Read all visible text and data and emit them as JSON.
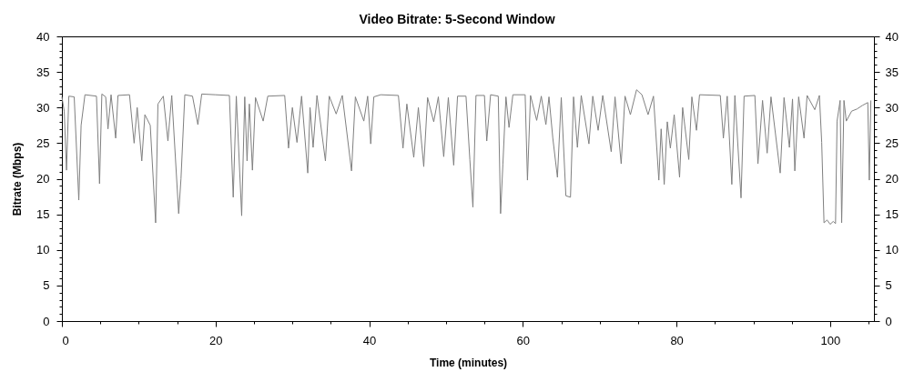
{
  "chart_data": {
    "type": "line",
    "title": "Video Bitrate: 5-Second Window",
    "xlabel": "Time (minutes)",
    "ylabel": "Bitrate (Mbps)",
    "line_style": "solid",
    "xlim": [
      0,
      105.7
    ],
    "xticks": [
      0,
      {
        "value": 5,
        "label": null
      },
      {
        "value": 10,
        "label": null
      },
      {
        "value": 15,
        "label": null
      },
      20,
      {
        "value": 25,
        "label": null
      },
      {
        "value": 30,
        "label": null
      },
      {
        "value": 35,
        "label": null
      },
      40,
      {
        "value": 45,
        "label": null
      },
      {
        "value": 50,
        "label": null
      },
      {
        "value": 55,
        "label": null
      },
      60,
      {
        "value": 65,
        "label": null
      },
      {
        "value": 70,
        "label": null
      },
      {
        "value": 75,
        "label": null
      },
      80,
      {
        "value": 85,
        "label": null
      },
      {
        "value": 90,
        "label": null
      },
      {
        "value": 95,
        "label": null
      },
      100,
      {
        "value": 105,
        "label": null
      }
    ],
    "ylim": [
      0,
      40
    ],
    "yticks": [
      0,
      {
        "value": 1,
        "label": null
      },
      {
        "value": 2,
        "label": null
      },
      {
        "value": 3,
        "label": null
      },
      {
        "value": 4,
        "label": null
      },
      5,
      {
        "value": 6,
        "label": null
      },
      {
        "value": 7,
        "label": null
      },
      {
        "value": 8,
        "label": null
      },
      {
        "value": 9,
        "label": null
      },
      10,
      {
        "value": 11,
        "label": null
      },
      {
        "value": 12,
        "label": null
      },
      {
        "value": 13,
        "label": null
      },
      {
        "value": 14,
        "label": null
      },
      15,
      {
        "value": 16,
        "label": null
      },
      {
        "value": 17,
        "label": null
      },
      {
        "value": 18,
        "label": null
      },
      {
        "value": 19,
        "label": null
      },
      20,
      {
        "value": 21,
        "label": null
      },
      {
        "value": 22,
        "label": null
      },
      {
        "value": 23,
        "label": null
      },
      {
        "value": 24,
        "label": null
      },
      25,
      {
        "value": 26,
        "label": null
      },
      {
        "value": 27,
        "label": null
      },
      {
        "value": 28,
        "label": null
      },
      {
        "value": 29,
        "label": null
      },
      30,
      {
        "value": 31,
        "label": null
      },
      {
        "value": 32,
        "label": null
      },
      {
        "value": 33,
        "label": null
      },
      {
        "value": 34,
        "label": null
      },
      35,
      {
        "value": 36,
        "label": null
      },
      {
        "value": 37,
        "label": null
      },
      {
        "value": 38,
        "label": null
      },
      {
        "value": 39,
        "label": null
      },
      40
    ],
    "y2lim": [
      0,
      40
    ],
    "y2ticks": [
      0,
      {
        "value": 1,
        "label": null
      },
      {
        "value": 2,
        "label": null
      },
      {
        "value": 3,
        "label": null
      },
      {
        "value": 4,
        "label": null
      },
      5,
      {
        "value": 6,
        "label": null
      },
      {
        "value": 7,
        "label": null
      },
      {
        "value": 8,
        "label": null
      },
      {
        "value": 9,
        "label": null
      },
      10,
      {
        "value": 11,
        "label": null
      },
      {
        "value": 12,
        "label": null
      },
      {
        "value": 13,
        "label": null
      },
      {
        "value": 14,
        "label": null
      },
      15,
      {
        "value": 16,
        "label": null
      },
      {
        "value": 17,
        "label": null
      },
      {
        "value": 18,
        "label": null
      },
      {
        "value": 19,
        "label": null
      },
      20,
      {
        "value": 21,
        "label": null
      },
      {
        "value": 22,
        "label": null
      },
      {
        "value": 23,
        "label": null
      },
      {
        "value": 24,
        "label": null
      },
      25,
      {
        "value": 26,
        "label": null
      },
      {
        "value": 27,
        "label": null
      },
      {
        "value": 28,
        "label": null
      },
      {
        "value": 29,
        "label": null
      },
      30,
      {
        "value": 31,
        "label": null
      },
      {
        "value": 32,
        "label": null
      },
      {
        "value": 33,
        "label": null
      },
      {
        "value": 34,
        "label": null
      },
      35,
      {
        "value": 36,
        "label": null
      },
      {
        "value": 37,
        "label": null
      },
      {
        "value": 38,
        "label": null
      },
      {
        "value": 39,
        "label": null
      },
      40
    ],
    "x": [
      0,
      0.3,
      0.6,
      0.9,
      1.6,
      2.2,
      2.5,
      3.0,
      4.5,
      4.9,
      5.2,
      5.7,
      6.0,
      6.4,
      7.0,
      7.3,
      8.8,
      9.4,
      9.8,
      10.4,
      10.8,
      11.5,
      12.2,
      12.5,
      13.2,
      13.8,
      14.3,
      15.2,
      15.5,
      16.0,
      17.0,
      17.7,
      18.2,
      20.0,
      21.8,
      22.3,
      22.7,
      23.4,
      23.8,
      24.1,
      24.4,
      24.8,
      25.2,
      26.2,
      26.8,
      29.0,
      29.5,
      30.0,
      30.6,
      31.2,
      32.0,
      32.3,
      32.7,
      33.2,
      34.3,
      34.8,
      35.7,
      36.5,
      37.7,
      38.2,
      39.3,
      39.8,
      40.2,
      40.6,
      41.5,
      43.8,
      44.4,
      44.9,
      45.8,
      46.4,
      47.1,
      47.6,
      48.4,
      49.0,
      49.7,
      50.3,
      51.0,
      51.5,
      52.6,
      53.1,
      53.5,
      53.9,
      55.0,
      55.3,
      55.8,
      56.8,
      57.1,
      57.4,
      57.8,
      58.2,
      58.7,
      60.3,
      60.6,
      61.0,
      61.8,
      62.4,
      63.0,
      63.4,
      63.9,
      64.5,
      65.0,
      65.6,
      66.2,
      66.6,
      67.1,
      67.6,
      68.6,
      69.1,
      69.8,
      70.4,
      71.5,
      72.0,
      72.8,
      73.3,
      74.0,
      74.8,
      75.5,
      76.3,
      77.0,
      77.7,
      78.0,
      78.4,
      78.8,
      79.2,
      79.7,
      80.4,
      80.8,
      81.6,
      82.0,
      82.6,
      83.0,
      85.7,
      86.1,
      86.6,
      87.2,
      87.6,
      88.4,
      88.8,
      90.2,
      90.6,
      91.2,
      91.8,
      92.3,
      93.5,
      94.0,
      94.7,
      95.1,
      95.4,
      95.9,
      96.6,
      97.0,
      98.0,
      98.6,
      98.9,
      99.2,
      99.6,
      100.0,
      100.4,
      100.7,
      100.9,
      101.3,
      101.5,
      101.8,
      102.1,
      102.8,
      103.5,
      104.2,
      104.9,
      105.1,
      105.3
    ],
    "series": [
      {
        "color": "#808080",
        "values": [
          31.5,
          29.5,
          21.2,
          31.6,
          31.5,
          17.0,
          27.5,
          31.8,
          31.6,
          19.3,
          31.9,
          31.5,
          27.0,
          31.8,
          25.7,
          31.7,
          31.8,
          25.0,
          30.0,
          22.5,
          29.0,
          27.5,
          13.8,
          30.5,
          31.6,
          25.3,
          31.7,
          15.1,
          20.0,
          31.8,
          31.6,
          27.6,
          31.9,
          31.8,
          31.7,
          17.4,
          31.6,
          14.8,
          31.5,
          22.5,
          30.5,
          21.2,
          31.4,
          28.1,
          31.6,
          31.7,
          24.3,
          30.0,
          25.1,
          31.6,
          20.8,
          30.0,
          24.4,
          31.7,
          22.5,
          31.6,
          29.1,
          31.7,
          21.1,
          31.5,
          28.1,
          31.6,
          24.9,
          31.5,
          31.8,
          31.7,
          24.3,
          30.5,
          23.0,
          30.0,
          21.7,
          31.4,
          28.0,
          31.5,
          23.1,
          31.4,
          21.9,
          31.6,
          31.6,
          22.7,
          16.0,
          31.7,
          31.7,
          25.3,
          31.8,
          31.6,
          15.1,
          22.0,
          31.5,
          27.2,
          31.8,
          31.8,
          19.8,
          31.7,
          28.2,
          31.6,
          27.6,
          31.5,
          25.7,
          20.2,
          31.4,
          17.6,
          17.4,
          31.5,
          24.4,
          31.7,
          24.9,
          31.6,
          26.8,
          31.7,
          23.8,
          31.5,
          22.1,
          31.6,
          29.0,
          32.5,
          31.8,
          29.0,
          31.6,
          19.8,
          27.0,
          19.2,
          28.0,
          24.3,
          29.0,
          20.2,
          30.0,
          22.7,
          31.5,
          26.8,
          31.8,
          31.7,
          25.7,
          31.6,
          19.2,
          31.7,
          17.3,
          31.6,
          31.7,
          22.1,
          31.0,
          23.6,
          31.5,
          20.8,
          31.4,
          24.4,
          31.2,
          21.1,
          31.5,
          25.7,
          31.7,
          29.7,
          31.7,
          25.1,
          13.8,
          14.2,
          13.6,
          14.0,
          13.7,
          28.1,
          31.0,
          13.8,
          31.0,
          28.1,
          29.5,
          29.8,
          30.3,
          30.7,
          19.8,
          31.0
        ]
      }
    ]
  }
}
